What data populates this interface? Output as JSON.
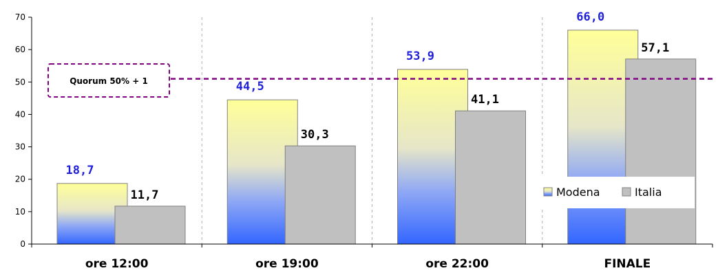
{
  "chart_data": {
    "type": "bar",
    "categories": [
      "ore 12:00",
      "ore 19:00",
      "ore 22:00",
      "FINALE"
    ],
    "series": [
      {
        "name": "Modena",
        "values": [
          18.7,
          44.5,
          53.9,
          66.0
        ],
        "labels": [
          "18,7",
          "44,5",
          "53,9",
          "66,0"
        ],
        "label_color": "#1f1fd9"
      },
      {
        "name": "Italia",
        "values": [
          11.7,
          30.3,
          41.1,
          57.1
        ],
        "labels": [
          "11,7",
          "30,3",
          "41,1",
          "57,1"
        ],
        "label_color": "#000000"
      }
    ],
    "ylim": [
      0,
      70
    ],
    "yticks": [
      0,
      10,
      20,
      30,
      40,
      50,
      60,
      70
    ],
    "reference_line": {
      "value": 51,
      "label": "Quorum 50% + 1",
      "color": "#800080"
    },
    "legend_position": "right",
    "colors": {
      "modena_top": "#ffff99",
      "modena_bottom": "#3366ff",
      "italia": "#c0c0c0"
    },
    "grid": {
      "vertical_separators": true,
      "horizontal": false
    }
  }
}
